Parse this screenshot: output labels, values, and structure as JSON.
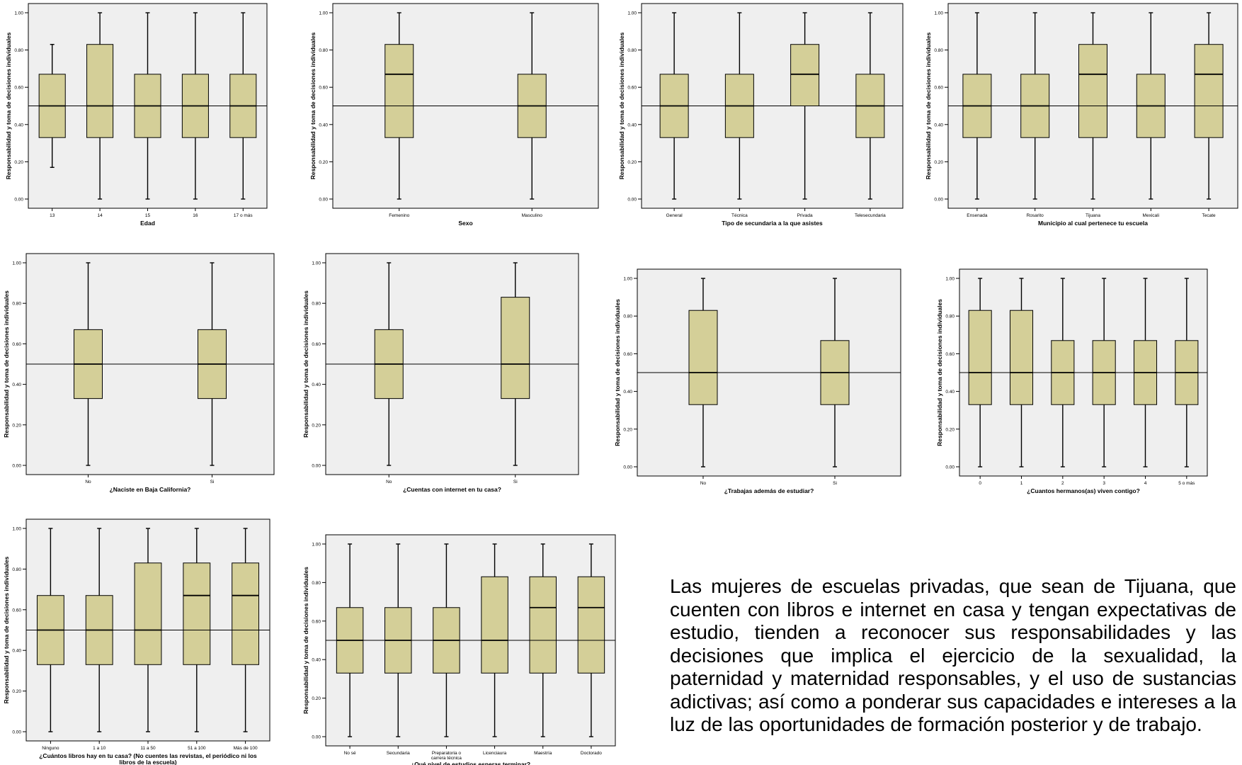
{
  "chart_style": {
    "plot_bg": "#efefef",
    "box_fill": "#d4cf98",
    "stroke": "#000000"
  },
  "summary_text": "Las mujeres de escuelas privadas, que sean de Tijuana, que cuenten con libros e internet en casa y tengan expectativas de estudio, tienden a reconocer sus responsabilidades y las decisiones que implica el ejercicio de la sexualidad, la paternidad y maternidad responsables, y el uso de sustancias adictivas; así como a ponderar sus capacidades e intereses a la luz de las oportunidades de formación posterior y de trabajo.",
  "chart_data": [
    {
      "type": "box",
      "ylabel": "Responsabilidad y toma de decisiones individuales",
      "xlabel": "Edad",
      "ylim": [
        0,
        1
      ],
      "yticks": [
        "0.00",
        "0.20",
        "0.40",
        "0.60",
        "0.80",
        "1.00"
      ],
      "reference_line": 0.5,
      "categories": [
        "13",
        "14",
        "15",
        "16",
        "17 o más"
      ],
      "boxes": [
        {
          "whisker_low": 0.17,
          "q1": 0.33,
          "median": 0.5,
          "q3": 0.67,
          "whisker_high": 0.83
        },
        {
          "whisker_low": 0.0,
          "q1": 0.33,
          "median": 0.5,
          "q3": 0.83,
          "whisker_high": 1.0
        },
        {
          "whisker_low": 0.0,
          "q1": 0.33,
          "median": 0.5,
          "q3": 0.67,
          "whisker_high": 1.0
        },
        {
          "whisker_low": 0.0,
          "q1": 0.33,
          "median": 0.5,
          "q3": 0.67,
          "whisker_high": 1.0
        },
        {
          "whisker_low": 0.0,
          "q1": 0.33,
          "median": 0.5,
          "q3": 0.67,
          "whisker_high": 1.0
        }
      ]
    },
    {
      "type": "box",
      "ylabel": "Responsabilidad y toma de decisiones individuales",
      "xlabel": "Sexo",
      "ylim": [
        0,
        1
      ],
      "yticks": [
        "0.00",
        "0.20",
        "0.40",
        "0.60",
        "0.80",
        "1.00"
      ],
      "reference_line": 0.5,
      "categories": [
        "Femenino",
        "Masculino"
      ],
      "boxes": [
        {
          "whisker_low": 0.0,
          "q1": 0.33,
          "median": 0.67,
          "q3": 0.83,
          "whisker_high": 1.0
        },
        {
          "whisker_low": 0.0,
          "q1": 0.33,
          "median": 0.5,
          "q3": 0.67,
          "whisker_high": 1.0
        }
      ]
    },
    {
      "type": "box",
      "ylabel": "Responsabilidad y toma de decisiones individuales",
      "xlabel": "Tipo de secundaria a la que asistes",
      "ylim": [
        0,
        1
      ],
      "yticks": [
        "0.00",
        "0.20",
        "0.40",
        "0.60",
        "0.80",
        "1.00"
      ],
      "reference_line": 0.5,
      "categories": [
        "General",
        "Técnica",
        "Privada",
        "Telesecundaria"
      ],
      "boxes": [
        {
          "whisker_low": 0.0,
          "q1": 0.33,
          "median": 0.5,
          "q3": 0.67,
          "whisker_high": 1.0
        },
        {
          "whisker_low": 0.0,
          "q1": 0.33,
          "median": 0.5,
          "q3": 0.67,
          "whisker_high": 1.0
        },
        {
          "whisker_low": 0.0,
          "q1": 0.5,
          "median": 0.67,
          "q3": 0.83,
          "whisker_high": 1.0
        },
        {
          "whisker_low": 0.0,
          "q1": 0.33,
          "median": 0.5,
          "q3": 0.67,
          "whisker_high": 1.0
        }
      ]
    },
    {
      "type": "box",
      "ylabel": "Responsabilidad y toma de decisiones individuales",
      "xlabel": "Municipio al cual pertenece tu escuela",
      "ylim": [
        0,
        1
      ],
      "yticks": [
        "0.00",
        "0.20",
        "0.40",
        "0.60",
        "0.80",
        "1.00"
      ],
      "reference_line": 0.5,
      "categories": [
        "Ensenada",
        "Rosarito",
        "Tijuana",
        "Mexicali",
        "Tecate"
      ],
      "boxes": [
        {
          "whisker_low": 0.0,
          "q1": 0.33,
          "median": 0.5,
          "q3": 0.67,
          "whisker_high": 1.0
        },
        {
          "whisker_low": 0.0,
          "q1": 0.33,
          "median": 0.5,
          "q3": 0.67,
          "whisker_high": 1.0
        },
        {
          "whisker_low": 0.0,
          "q1": 0.33,
          "median": 0.67,
          "q3": 0.83,
          "whisker_high": 1.0
        },
        {
          "whisker_low": 0.0,
          "q1": 0.33,
          "median": 0.5,
          "q3": 0.67,
          "whisker_high": 1.0
        },
        {
          "whisker_low": 0.0,
          "q1": 0.33,
          "median": 0.67,
          "q3": 0.83,
          "whisker_high": 1.0
        }
      ]
    },
    {
      "type": "box",
      "ylabel": "Responsabilidad y toma de decisiones individuales",
      "xlabel": "¿Naciste en Baja California?",
      "ylim": [
        0,
        1
      ],
      "yticks": [
        "0.00",
        "0.20",
        "0.40",
        "0.60",
        "0.80",
        "1.00"
      ],
      "reference_line": 0.5,
      "categories": [
        "No",
        "Si"
      ],
      "boxes": [
        {
          "whisker_low": 0.0,
          "q1": 0.33,
          "median": 0.5,
          "q3": 0.67,
          "whisker_high": 1.0
        },
        {
          "whisker_low": 0.0,
          "q1": 0.33,
          "median": 0.5,
          "q3": 0.67,
          "whisker_high": 1.0
        }
      ]
    },
    {
      "type": "box",
      "ylabel": "Responsabilidad y toma de decisiones individuales",
      "xlabel": "¿Cuentas con internet en tu casa?",
      "ylim": [
        0,
        1
      ],
      "yticks": [
        "0.00",
        "0.20",
        "0.40",
        "0.60",
        "0.80",
        "1.00"
      ],
      "reference_line": 0.5,
      "categories": [
        "No",
        "Si"
      ],
      "boxes": [
        {
          "whisker_low": 0.0,
          "q1": 0.33,
          "median": 0.5,
          "q3": 0.67,
          "whisker_high": 1.0
        },
        {
          "whisker_low": 0.0,
          "q1": 0.33,
          "median": 0.5,
          "q3": 0.83,
          "whisker_high": 1.0
        }
      ]
    },
    {
      "type": "box",
      "ylabel": "Responsabilidad y toma de decisiones individuales",
      "xlabel": "¿Trabajas además de estudiar?",
      "ylim": [
        0,
        1
      ],
      "yticks": [
        "0.00",
        "0.20",
        "0.40",
        "0.60",
        "0.80",
        "1.00"
      ],
      "reference_line": 0.5,
      "categories": [
        "No",
        "Si"
      ],
      "boxes": [
        {
          "whisker_low": 0.0,
          "q1": 0.33,
          "median": 0.5,
          "q3": 0.83,
          "whisker_high": 1.0
        },
        {
          "whisker_low": 0.0,
          "q1": 0.33,
          "median": 0.5,
          "q3": 0.67,
          "whisker_high": 1.0
        }
      ]
    },
    {
      "type": "box",
      "ylabel": "Responsabilidad y toma de decisiones individuales",
      "xlabel": "¿Cuantos hermanos(as) viven contigo?",
      "ylim": [
        0,
        1
      ],
      "yticks": [
        "0.00",
        "0.20",
        "0.40",
        "0.60",
        "0.80",
        "1.00"
      ],
      "reference_line": 0.5,
      "categories": [
        "0",
        "1",
        "2",
        "3",
        "4",
        "5 o más"
      ],
      "boxes": [
        {
          "whisker_low": 0.0,
          "q1": 0.33,
          "median": 0.5,
          "q3": 0.83,
          "whisker_high": 1.0
        },
        {
          "whisker_low": 0.0,
          "q1": 0.33,
          "median": 0.5,
          "q3": 0.83,
          "whisker_high": 1.0
        },
        {
          "whisker_low": 0.0,
          "q1": 0.33,
          "median": 0.5,
          "q3": 0.67,
          "whisker_high": 1.0
        },
        {
          "whisker_low": 0.0,
          "q1": 0.33,
          "median": 0.5,
          "q3": 0.67,
          "whisker_high": 1.0
        },
        {
          "whisker_low": 0.0,
          "q1": 0.33,
          "median": 0.5,
          "q3": 0.67,
          "whisker_high": 1.0
        },
        {
          "whisker_low": 0.0,
          "q1": 0.33,
          "median": 0.5,
          "q3": 0.67,
          "whisker_high": 1.0
        }
      ]
    },
    {
      "type": "box",
      "ylabel": "Responsabilidad y toma de decisiones individuales",
      "xlabel_lines": [
        "¿Cuántos libros hay en tu casa? (No cuentes las revistas, el periódico ni los",
        "libros de la escuela)"
      ],
      "ylim": [
        0,
        1
      ],
      "yticks": [
        "0.00",
        "0.20",
        "0.40",
        "0.60",
        "0.80",
        "1.00"
      ],
      "reference_line": 0.5,
      "categories": [
        "Ninguno",
        "1 a 10",
        "11 a 50",
        "51 a 100",
        "Más de 100"
      ],
      "boxes": [
        {
          "whisker_low": 0.0,
          "q1": 0.33,
          "median": 0.5,
          "q3": 0.67,
          "whisker_high": 1.0
        },
        {
          "whisker_low": 0.0,
          "q1": 0.33,
          "median": 0.5,
          "q3": 0.67,
          "whisker_high": 1.0
        },
        {
          "whisker_low": 0.0,
          "q1": 0.33,
          "median": 0.5,
          "q3": 0.83,
          "whisker_high": 1.0
        },
        {
          "whisker_low": 0.0,
          "q1": 0.33,
          "median": 0.67,
          "q3": 0.83,
          "whisker_high": 1.0
        },
        {
          "whisker_low": 0.0,
          "q1": 0.33,
          "median": 0.67,
          "q3": 0.83,
          "whisker_high": 1.0
        }
      ]
    },
    {
      "type": "box",
      "ylabel": "Responsabilidad y toma de decisiones individuales",
      "xlabel": "¿Qué nivel de estudios esperas terminar?",
      "ylim": [
        0,
        1
      ],
      "yticks": [
        "0.00",
        "0.20",
        "0.40",
        "0.60",
        "0.80",
        "1.00"
      ],
      "reference_line": 0.5,
      "categories": [
        "No sé",
        "Secundaria",
        "Preparatoria o carrera técnica",
        "Licenciaura",
        "Maestría",
        "Doctorado"
      ],
      "boxes": [
        {
          "whisker_low": 0.0,
          "q1": 0.33,
          "median": 0.5,
          "q3": 0.67,
          "whisker_high": 1.0
        },
        {
          "whisker_low": 0.0,
          "q1": 0.33,
          "median": 0.5,
          "q3": 0.67,
          "whisker_high": 1.0
        },
        {
          "whisker_low": 0.0,
          "q1": 0.33,
          "median": 0.5,
          "q3": 0.67,
          "whisker_high": 1.0
        },
        {
          "whisker_low": 0.0,
          "q1": 0.33,
          "median": 0.5,
          "q3": 0.83,
          "whisker_high": 1.0
        },
        {
          "whisker_low": 0.0,
          "q1": 0.33,
          "median": 0.67,
          "q3": 0.83,
          "whisker_high": 1.0
        },
        {
          "whisker_low": 0.0,
          "q1": 0.33,
          "median": 0.67,
          "q3": 0.83,
          "whisker_high": 1.0
        }
      ]
    }
  ]
}
